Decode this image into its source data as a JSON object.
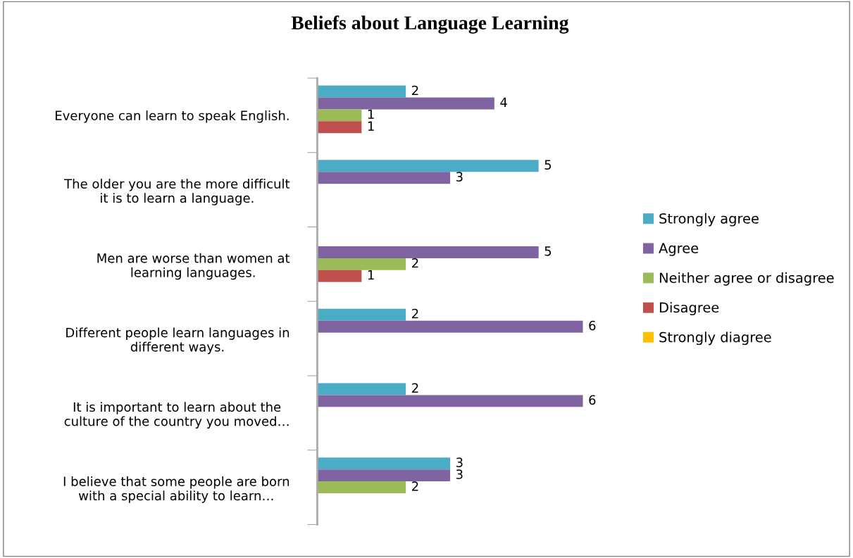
{
  "chart_data": {
    "type": "bar",
    "orientation": "horizontal",
    "title": "Beliefs about Language Learning",
    "categories": [
      "Everyone can learn to speak English.",
      "The older you are the more difficult\nit is to learn a language.",
      "Men are worse than women at\nlearning languages.",
      "Different people learn languages in\ndifferent ways.",
      "It is important to learn about the\nculture of the country you moved…",
      "I believe that some people are born\nwith a special ability to learn…"
    ],
    "series": [
      {
        "name": "Strongly agree",
        "color": "#4bacc6",
        "values": [
          2,
          5,
          null,
          2,
          2,
          3
        ]
      },
      {
        "name": "Agree",
        "color": "#8064a2",
        "values": [
          4,
          3,
          5,
          6,
          6,
          3
        ]
      },
      {
        "name": "Neither agree or disagree",
        "color": "#9bbb59",
        "values": [
          1,
          null,
          2,
          null,
          null,
          2
        ]
      },
      {
        "name": "Disagree",
        "color": "#c0504d",
        "values": [
          1,
          null,
          1,
          null,
          null,
          null
        ]
      },
      {
        "name": "Strongly diagree",
        "color": "#ffc000",
        "values": [
          null,
          null,
          null,
          null,
          null,
          null
        ]
      }
    ],
    "data_labels": true,
    "legend": "right",
    "grid": false
  }
}
